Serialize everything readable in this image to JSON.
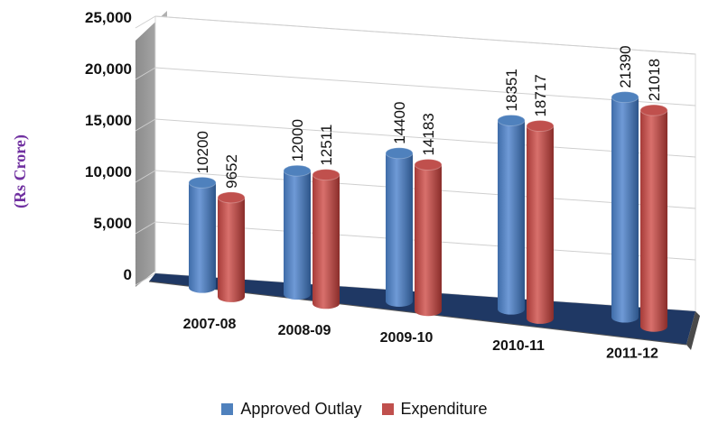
{
  "chart_data": {
    "type": "bar",
    "style": "3d-cylinder",
    "title": "",
    "xlabel": "",
    "ylabel": "(Rs Crore)",
    "ylim": [
      0,
      25000
    ],
    "yticks": [
      "0",
      "5,000",
      "10,000",
      "15,000",
      "20,000",
      "25,000"
    ],
    "grid": true,
    "legend_position": "bottom",
    "categories": [
      "2007-08",
      "2008-09",
      "2009-10",
      "2010-11",
      "2011-12"
    ],
    "series": [
      {
        "name": "Approved Outlay",
        "values": [
          10200,
          12000,
          14400,
          18351,
          21390
        ],
        "labels": [
          "10200",
          "12000",
          "14400",
          "18351",
          "21390"
        ]
      },
      {
        "name": "Expenditure",
        "values": [
          9652,
          12511,
          14183,
          18717,
          21018
        ],
        "labels": [
          "9652",
          "12511",
          "14183",
          "18717",
          "21018"
        ]
      }
    ]
  },
  "colors": {
    "approved": "#4f81bd",
    "expenditure": "#c0504d",
    "floor": "#1f3864",
    "wall": "#b2b2b2",
    "ylabel": "#7030a0"
  }
}
